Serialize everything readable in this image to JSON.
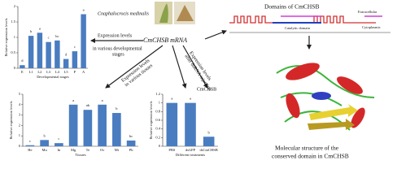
{
  "species": "Cnaphalocrocis medinalis",
  "center_label": "CmCHSB mRNA",
  "arrow_labels": {
    "stages": [
      "Expression levels",
      "in various developmental",
      "stages"
    ],
    "tissues": [
      "Expression levels",
      "in various tissues"
    ],
    "injection": [
      "Expression levels",
      "after dsRNA injection"
    ]
  },
  "domains": {
    "title": "Domains of CmCHSB",
    "extracellular": "Extracellular",
    "catalytic": "Catalytic domain",
    "cytoplasmic": "Cytoplasmic"
  },
  "structure_caption": [
    "Molecular structure of the",
    "conserved domain in CmCHSB"
  ],
  "chart_data": [
    {
      "type": "bar",
      "categories": [
        "E",
        "L1",
        "L2",
        "L3",
        "L4",
        "L5",
        "P",
        "A"
      ],
      "values": [
        0.1,
        1.05,
        1.15,
        0.85,
        0.9,
        0.3,
        0.55,
        1.75
      ],
      "significance": [
        "d",
        "b",
        "a",
        "c",
        "bc",
        "d",
        "c",
        "a"
      ],
      "color": "#4a7cc0",
      "ylim": [
        0,
        2
      ],
      "yticks": [
        0,
        0.5,
        1,
        1.5,
        2
      ],
      "x_label": "Developmental stages",
      "y_label": "Relative expression levels"
    },
    {
      "type": "bar",
      "categories": [
        "He",
        "Mu",
        "In",
        "Mg",
        "Te",
        "Ov",
        "Mt",
        "Pb"
      ],
      "values": [
        0.1,
        0.6,
        0.3,
        4.0,
        3.5,
        4.0,
        3.2,
        0.55
      ],
      "significance": [
        "c",
        "b",
        "c",
        "a",
        "ab",
        "a",
        "b",
        "bc"
      ],
      "color": "#4a7cc0",
      "ylim": [
        0,
        5
      ],
      "yticks": [
        0,
        1,
        2,
        3,
        4,
        5
      ],
      "x_label": "Tissues",
      "y_label": "Relative expression levels"
    },
    {
      "type": "bar",
      "title": "CmCHSB",
      "categories": [
        "PBS",
        "dsGFP",
        "dsCmCHSB"
      ],
      "values": [
        1.0,
        1.0,
        0.22
      ],
      "significance": [
        "a",
        "a",
        "b"
      ],
      "color": "#4a7cc0",
      "ylim": [
        0,
        1.2
      ],
      "yticks": [
        0,
        0.2,
        0.4,
        0.6,
        0.8,
        1,
        1.2
      ],
      "x_label": "Different treatments",
      "y_label": "Relative expression levels"
    }
  ]
}
